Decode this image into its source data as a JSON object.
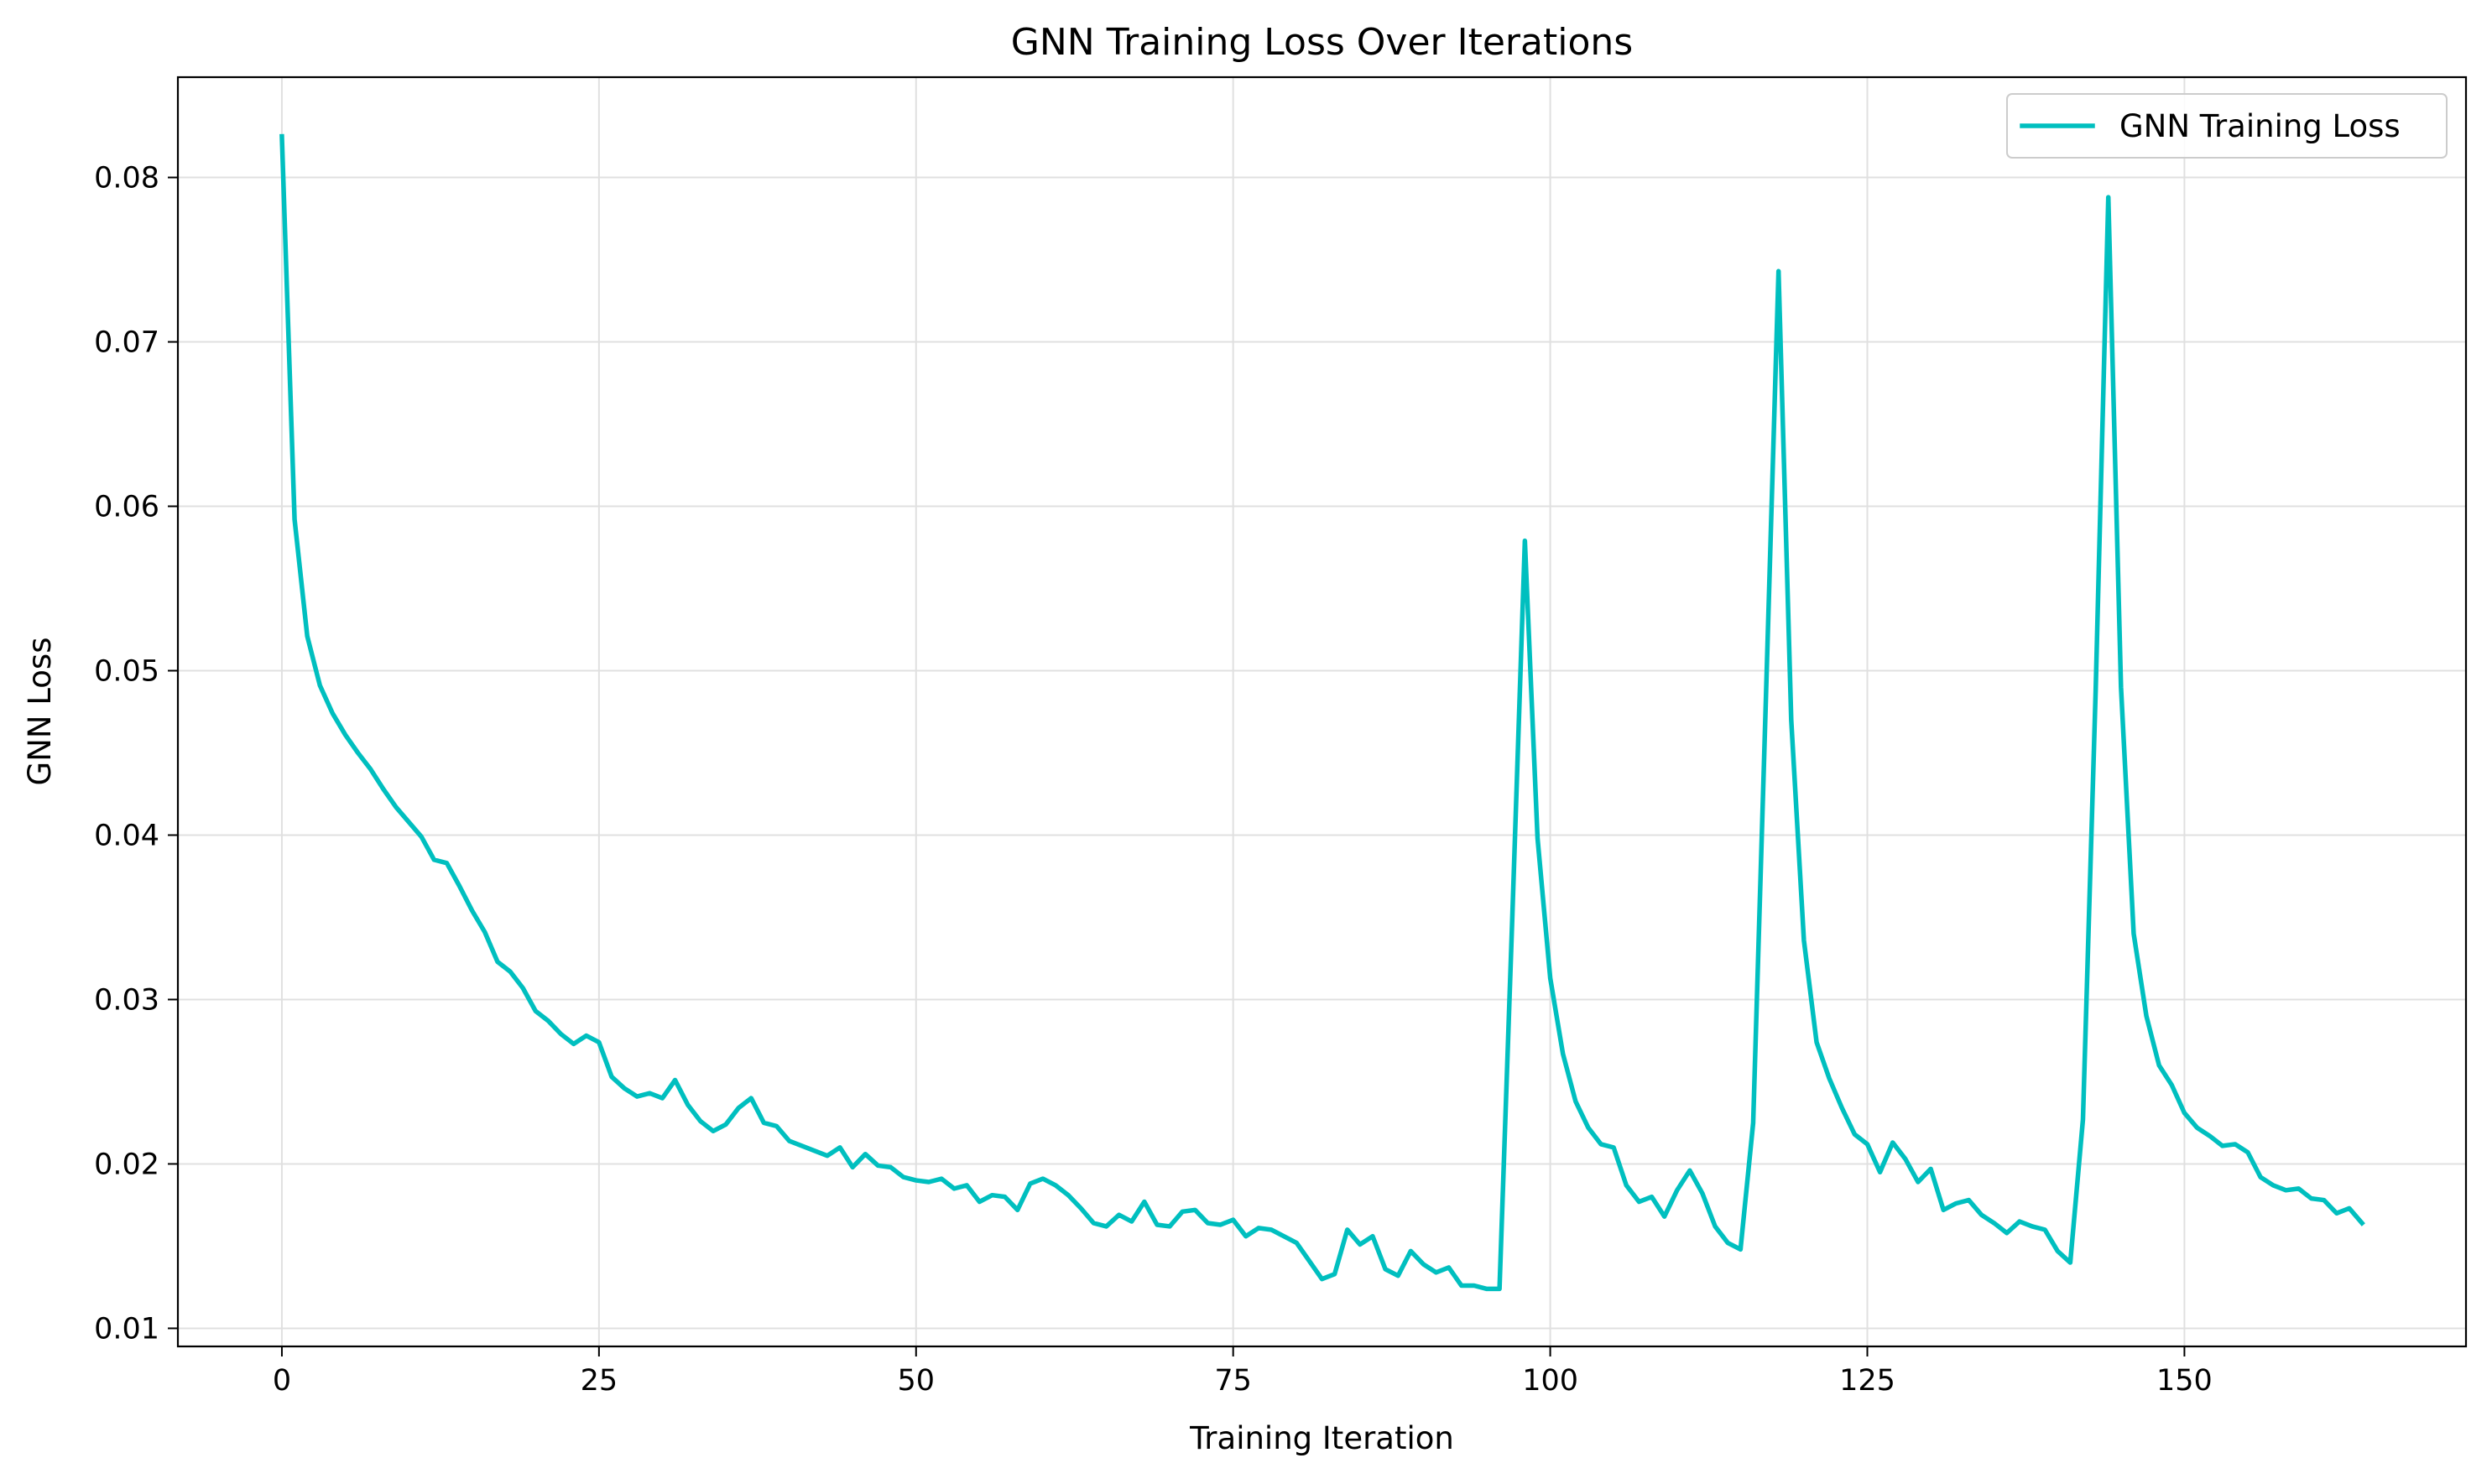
{
  "chart_data": {
    "type": "line",
    "title": "GNN Training Loss Over Iterations",
    "xlabel": "Training Iteration",
    "ylabel": "GNN Loss",
    "xlim": [
      -8.2,
      172.2
    ],
    "ylim": [
      0.0089,
      0.0861
    ],
    "xticks": [
      0,
      25,
      50,
      75,
      100,
      125,
      150
    ],
    "xtick_labels": [
      "0",
      "25",
      "50",
      "75",
      "100",
      "125",
      "150"
    ],
    "yticks": [
      0.01,
      0.02,
      0.03,
      0.04,
      0.05,
      0.06,
      0.07,
      0.08
    ],
    "ytick_labels": [
      "0.01",
      "0.02",
      "0.03",
      "0.04",
      "0.05",
      "0.06",
      "0.07",
      "0.08"
    ],
    "grid": true,
    "legend_position": "top-right",
    "series": [
      {
        "name": "GNN Training Loss",
        "color": "#00bfbf",
        "x": [
          0,
          1,
          2,
          3,
          4,
          5,
          6,
          7,
          8,
          9,
          10,
          11,
          12,
          13,
          14,
          15,
          16,
          17,
          18,
          19,
          20,
          21,
          22,
          23,
          24,
          25,
          26,
          27,
          28,
          29,
          30,
          31,
          32,
          33,
          34,
          35,
          36,
          37,
          38,
          39,
          40,
          41,
          42,
          43,
          44,
          45,
          46,
          47,
          48,
          49,
          50,
          51,
          52,
          53,
          54,
          55,
          56,
          57,
          58,
          59,
          60,
          61,
          62,
          63,
          64,
          65,
          66,
          67,
          68,
          69,
          70,
          71,
          72,
          73,
          74,
          75,
          76,
          77,
          78,
          79,
          80,
          81,
          82,
          83,
          84,
          85,
          86,
          87,
          88,
          89,
          90,
          91,
          92,
          93,
          94,
          95,
          96,
          97,
          98,
          99,
          100,
          101,
          102,
          103,
          104,
          105,
          106,
          107,
          108,
          109,
          110,
          111,
          112,
          113,
          114,
          115,
          116,
          117,
          118,
          119,
          120,
          121,
          122,
          123,
          124,
          125,
          126,
          127,
          128,
          129,
          130,
          131,
          132,
          133,
          134,
          135,
          136,
          137,
          138,
          139,
          140,
          141,
          142,
          143,
          144,
          145,
          146,
          147,
          148,
          149,
          150,
          151,
          152,
          153,
          154,
          155,
          156,
          157,
          158,
          159,
          160,
          161,
          162,
          163,
          164
        ],
        "values": [
          0.0825,
          0.0592,
          0.0521,
          0.0491,
          0.0474,
          0.0461,
          0.045,
          0.044,
          0.0428,
          0.0417,
          0.0408,
          0.0399,
          0.0385,
          0.0383,
          0.0369,
          0.0354,
          0.0341,
          0.0323,
          0.0317,
          0.0307,
          0.0293,
          0.0287,
          0.0279,
          0.0273,
          0.0278,
          0.0274,
          0.0253,
          0.0246,
          0.0241,
          0.0243,
          0.024,
          0.0251,
          0.0236,
          0.0226,
          0.022,
          0.0224,
          0.0234,
          0.024,
          0.0225,
          0.0223,
          0.0214,
          0.0211,
          0.0208,
          0.0205,
          0.021,
          0.0198,
          0.0206,
          0.0199,
          0.0198,
          0.0192,
          0.019,
          0.0189,
          0.0191,
          0.0185,
          0.0187,
          0.0177,
          0.0181,
          0.018,
          0.0172,
          0.0188,
          0.0191,
          0.0187,
          0.0181,
          0.0173,
          0.0164,
          0.0162,
          0.0169,
          0.0165,
          0.0177,
          0.0163,
          0.0162,
          0.0171,
          0.0172,
          0.0164,
          0.0163,
          0.0166,
          0.0156,
          0.0161,
          0.016,
          0.0156,
          0.0152,
          0.0141,
          0.013,
          0.0133,
          0.016,
          0.0151,
          0.0156,
          0.0136,
          0.0132,
          0.0147,
          0.0139,
          0.0134,
          0.0137,
          0.0126,
          0.0126,
          0.0124,
          0.0124,
          0.0348,
          0.0579,
          0.0398,
          0.0313,
          0.0267,
          0.0238,
          0.0222,
          0.0212,
          0.021,
          0.0187,
          0.0177,
          0.018,
          0.0168,
          0.0184,
          0.0196,
          0.0182,
          0.0162,
          0.0152,
          0.0148,
          0.0225,
          0.0482,
          0.0743,
          0.047,
          0.0336,
          0.0274,
          0.0252,
          0.0234,
          0.0218,
          0.0212,
          0.0195,
          0.0213,
          0.0203,
          0.0189,
          0.0197,
          0.0172,
          0.0176,
          0.0178,
          0.0169,
          0.0164,
          0.0158,
          0.0165,
          0.0162,
          0.016,
          0.0147,
          0.014,
          0.0227,
          0.0487,
          0.0788,
          0.049,
          0.034,
          0.029,
          0.026,
          0.0248,
          0.0231,
          0.0222,
          0.0217,
          0.0211,
          0.0212,
          0.0207,
          0.0192,
          0.0187,
          0.0184,
          0.0185,
          0.0179,
          0.0178,
          0.017,
          0.0173,
          0.0164
        ]
      }
    ]
  }
}
